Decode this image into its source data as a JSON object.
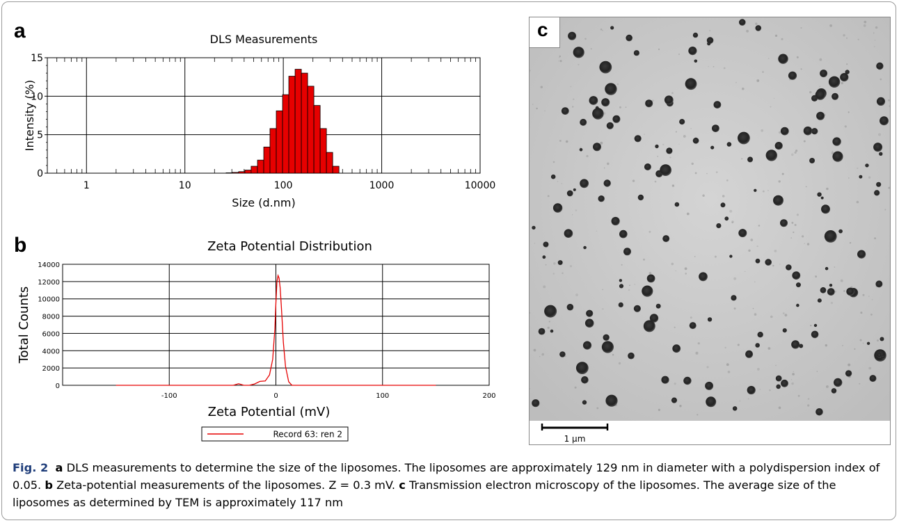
{
  "panels": {
    "a": {
      "letter": "a",
      "chart": {
        "type": "bar",
        "title": "DLS Measurements",
        "xlabel": "Size (d.nm)",
        "ylabel": "Intensity (%)",
        "x_scale": "log",
        "xlim": [
          0.4,
          10000
        ],
        "ylim": [
          0,
          15
        ],
        "x_ticks": [
          "1",
          "10",
          "100",
          "1000",
          "10000"
        ],
        "y_ticks": [
          "0",
          "5",
          "10",
          "15"
        ],
        "grid": true,
        "bar_color": "#e60000",
        "x": [
          28.2,
          32.7,
          37.8,
          43.8,
          50.7,
          58.8,
          68.1,
          78.8,
          91.3,
          105.7,
          122.4,
          141.8,
          164.2,
          190.1,
          220.2,
          255.0,
          295.3,
          342.0
        ],
        "values": [
          0.05,
          0.1,
          0.2,
          0.4,
          0.9,
          1.7,
          3.4,
          5.8,
          8.1,
          10.2,
          12.6,
          13.5,
          13.0,
          11.3,
          8.8,
          5.8,
          2.7,
          0.9
        ]
      }
    },
    "b": {
      "letter": "b",
      "chart": {
        "type": "line",
        "title": "Zeta Potential Distribution",
        "xlabel": "Zeta Potential (mV)",
        "ylabel": "Total Counts",
        "xlim": [
          -200,
          200
        ],
        "ylim": [
          0,
          14000
        ],
        "x_ticks": [
          "-100",
          "0",
          "100",
          "200"
        ],
        "y_ticks": [
          "0",
          "2000",
          "4000",
          "6000",
          "8000",
          "10000",
          "12000",
          "14000"
        ],
        "grid": true,
        "legend_position": "bottom",
        "series": [
          {
            "name": "Record 63: ren 2",
            "color": "#e60000",
            "x": [
              -150,
              -40,
              -35,
              -30,
              -25,
              -20,
              -15,
              -10,
              -6,
              -3,
              -1,
              0,
              1,
              2,
              3,
              4,
              5,
              6,
              7,
              9,
              12,
              15,
              20,
              150
            ],
            "y": [
              0,
              0,
              180,
              0,
              0,
              150,
              450,
              500,
              1200,
              3000,
              6500,
              9500,
              12000,
              12700,
              12400,
              11300,
              9300,
              7200,
              5000,
              2200,
              400,
              0,
              0,
              0
            ]
          }
        ]
      }
    },
    "c": {
      "letter": "c",
      "scale_bar_label": "1 μm"
    }
  },
  "caption": {
    "fig_label": "Fig. 2",
    "a_label": "a",
    "a_text": " DLS measurements to determine the size of the liposomes. The liposomes are approximately 129 nm in diameter with a polydispersion index of 0.05. ",
    "b_label": "b",
    "b_text": " Zeta-potential measurements of the liposomes. Z = 0.3 mV. ",
    "c_label": "c",
    "c_text": " Transmission electron microscopy of the liposomes. The average size of the liposomes as determined by TEM is approximately 117 nm"
  }
}
